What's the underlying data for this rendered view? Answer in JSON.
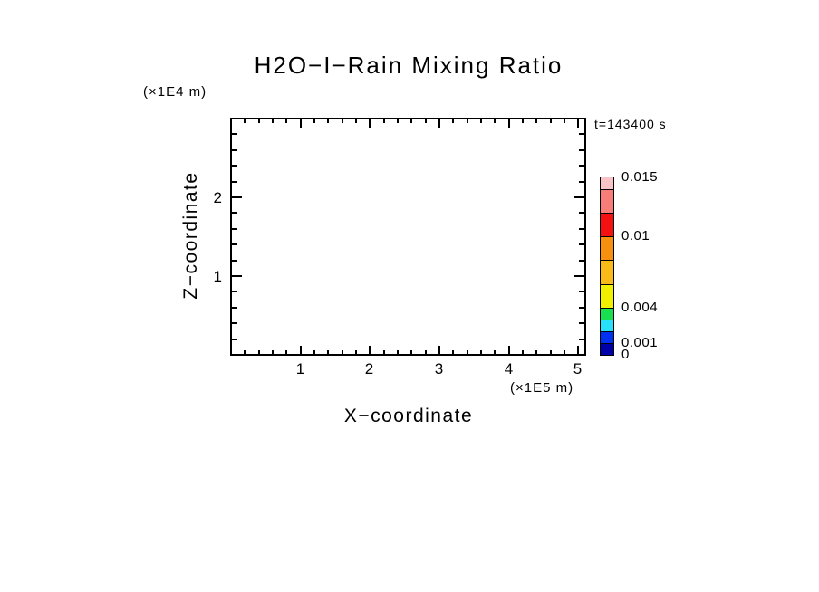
{
  "chart": {
    "title": "H2O−I−Rain Mixing Ratio",
    "timestamp": "t=143400 s",
    "xlabel": "X−coordinate",
    "ylabel": "Z−coordinate",
    "x_unit": "(×1E5 m)",
    "y_unit": "(×1E4 m)"
  },
  "chart_data": {
    "type": "heatmap",
    "title": "H2O−I−Rain Mixing Ratio",
    "time_label": "t=143400 s",
    "xlabel": "X−coordinate",
    "x_unit": "(×1E5 m)",
    "ylabel": "Z−coordinate",
    "y_unit": "(×1E4 m)",
    "x_range": [
      0,
      5.1
    ],
    "y_range": [
      0,
      3.0
    ],
    "x_major_ticks": [
      1,
      2,
      3,
      4,
      5
    ],
    "x_major_tick_labels": [
      "1",
      "2",
      "3",
      "4",
      "5"
    ],
    "x_minor_step": 0.2,
    "y_major_ticks": [
      1,
      2
    ],
    "y_major_tick_labels": [
      "1",
      "2"
    ],
    "y_minor_step": 0.2,
    "grid": false,
    "field_values": [],
    "field_note": "plot area is blank/white - no mixing-ratio values above the lowest contour level are shown at this time",
    "colorbar": {
      "position": "right",
      "range": [
        0,
        0.015
      ],
      "levels": [
        0,
        0.001,
        0.002,
        0.003,
        0.004,
        0.006,
        0.008,
        0.01,
        0.012,
        0.014,
        0.015
      ],
      "colors": [
        "#0000A8",
        "#0030F0",
        "#28E0F8",
        "#18E050",
        "#F0F000",
        "#F8BB18",
        "#F8900F",
        "#F51111",
        "#F87D78",
        "#F9C4C7"
      ],
      "labeled_levels": [
        {
          "value": 0,
          "text": "0"
        },
        {
          "value": 0.001,
          "text": "0.001"
        },
        {
          "value": 0.004,
          "text": "0.004"
        },
        {
          "value": 0.01,
          "text": "0.01"
        },
        {
          "value": 0.015,
          "text": "0.015"
        }
      ]
    }
  }
}
